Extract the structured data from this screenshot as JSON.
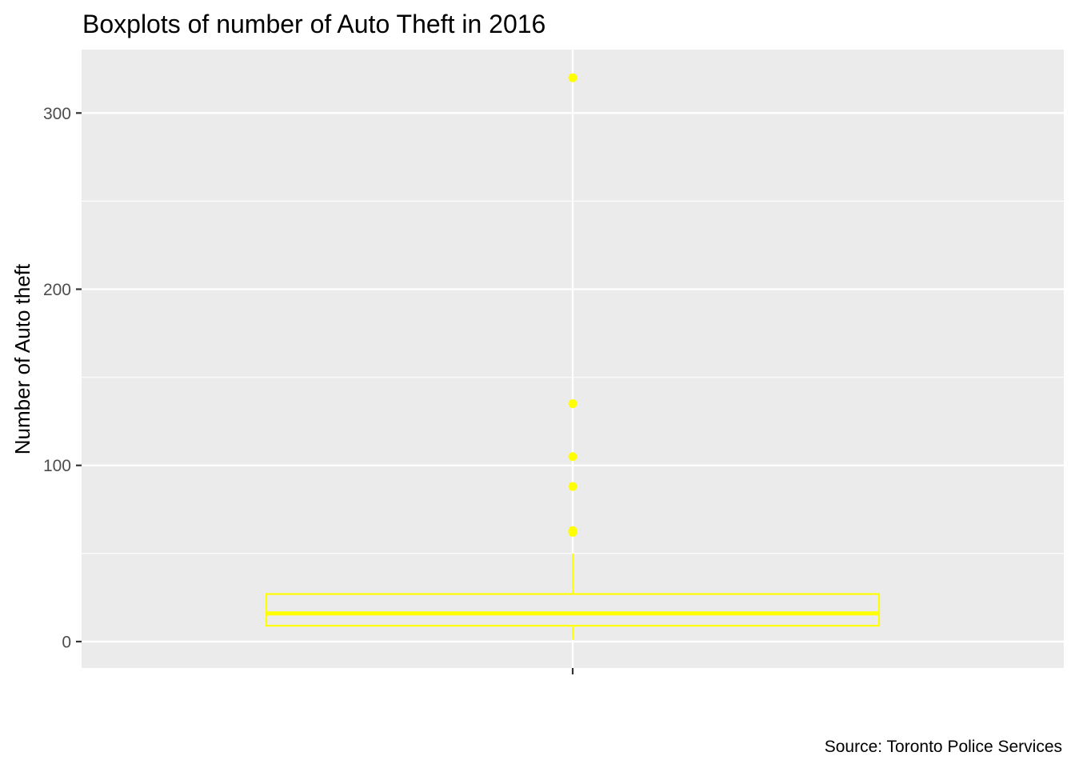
{
  "chart_data": {
    "type": "boxplot",
    "title": "Boxplots of number of Auto Theft in 2016",
    "xlabel": "",
    "ylabel": "Number of Auto theft",
    "caption": "Source: Toronto Police Services",
    "ylim": [
      -15,
      336
    ],
    "yticks": [
      0,
      100,
      200,
      300
    ],
    "ytick_labels": [
      "0",
      "100",
      "200",
      "300"
    ],
    "minor_yticks": [
      50,
      150,
      250
    ],
    "grid": true,
    "box": {
      "min": 1,
      "q1": 9,
      "median": 16,
      "q3": 27,
      "whisker_high": 50,
      "outliers": [
        62,
        63,
        88,
        105,
        135,
        320
      ]
    },
    "colors": {
      "box": "#ffff00",
      "panel": "#ebebeb",
      "grid": "#ffffff",
      "tick": "#333333",
      "tick_text": "#4d4d4d"
    }
  }
}
